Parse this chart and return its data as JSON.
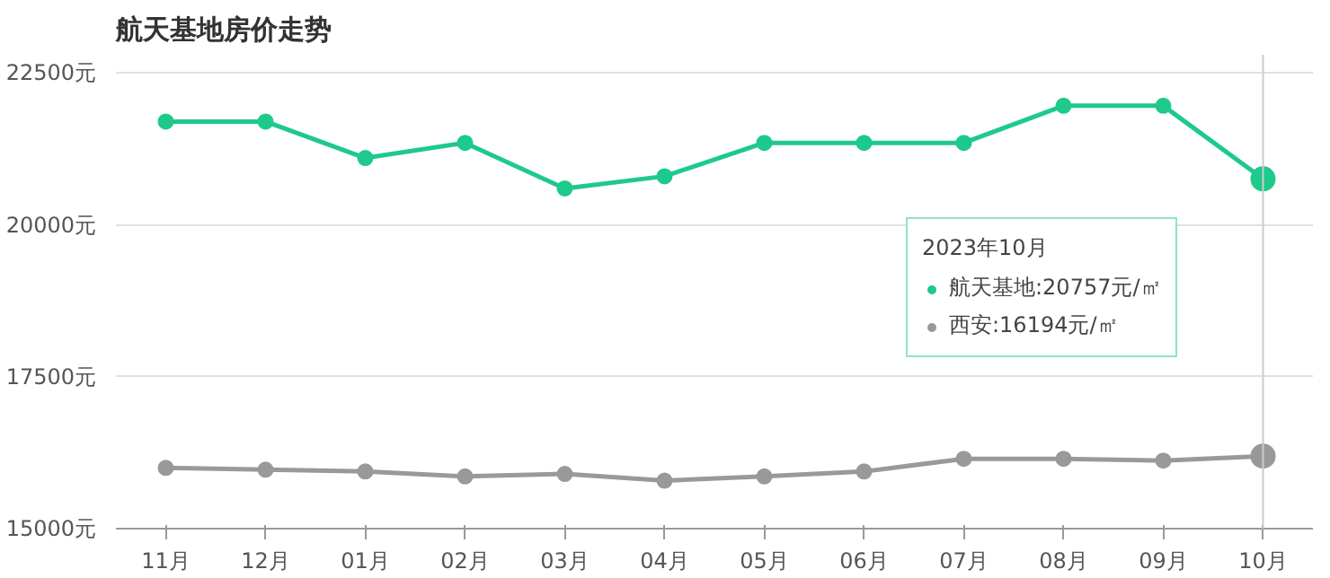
{
  "chart_data": {
    "type": "line",
    "title": "航天基地房价走势",
    "categories": [
      "11月",
      "12月",
      "01月",
      "02月",
      "03月",
      "04月",
      "05月",
      "06月",
      "07月",
      "08月",
      "09月",
      "10月"
    ],
    "series": [
      {
        "name": "航天基地:20757元/㎡",
        "color": "#1ec98c",
        "values": [
          21700,
          21700,
          21100,
          21350,
          20600,
          20800,
          21350,
          21350,
          21350,
          21960,
          21960,
          20757
        ]
      },
      {
        "name": "西安:16194元/㎡",
        "color": "#999999",
        "values": [
          16000,
          15970,
          15940,
          15860,
          15900,
          15790,
          15860,
          15940,
          16150,
          16150,
          16120,
          16194
        ]
      }
    ],
    "ylim": [
      15000,
      22800
    ],
    "yticks": [
      {
        "value": 15000,
        "label": "15000元"
      },
      {
        "value": 17500,
        "label": "17500元"
      },
      {
        "value": 20000,
        "label": "20000元"
      },
      {
        "value": 22500,
        "label": "22500元"
      }
    ],
    "grid": "y",
    "marker": "circle",
    "line_style": "solid",
    "legend": "right",
    "legend_title": "2023年10月",
    "ref_lines": [
      {
        "axis": "x",
        "value": "10月",
        "color": "#cccccc"
      }
    ]
  }
}
